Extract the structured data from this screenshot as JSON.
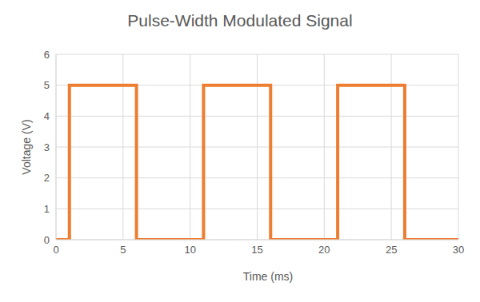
{
  "chart_data": {
    "type": "line",
    "title": "Pulse-Width Modulated Signal",
    "x_label": "Time (ms)",
    "y_label": "Voltage (V)",
    "x": [
      0,
      1,
      1,
      6,
      6,
      11,
      11,
      16,
      16,
      21,
      21,
      26,
      26,
      30
    ],
    "values": [
      0,
      0,
      5,
      5,
      0,
      0,
      5,
      5,
      0,
      0,
      5,
      5,
      0,
      0
    ],
    "color": "#ed7d31",
    "xlim": [
      0,
      30
    ],
    "xticks": [
      0,
      5,
      10,
      15,
      20,
      25,
      30
    ],
    "ylim": [
      0,
      6
    ],
    "yticks": [
      0,
      1,
      2,
      3,
      4,
      5,
      6
    ],
    "grid": true
  }
}
